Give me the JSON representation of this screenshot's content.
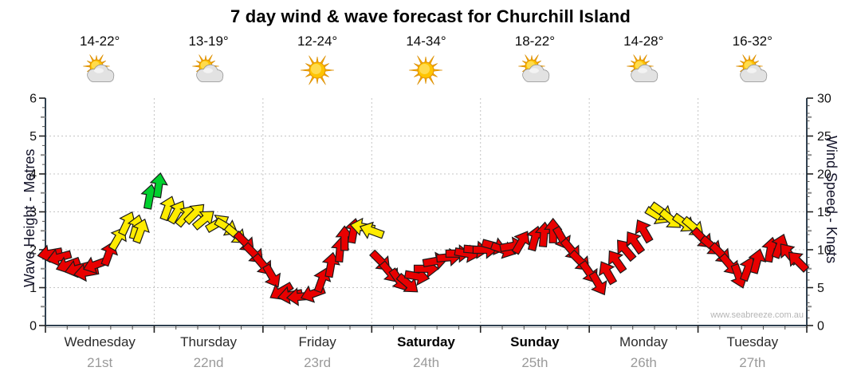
{
  "title": "7 day wind & wave forecast for Churchill Island",
  "watermark": "www.seabreeze.com.au",
  "days": [
    {
      "temp": "14-22°",
      "icon": "partly-cloudy",
      "name": "Wednesday",
      "date": "21st",
      "bold": false
    },
    {
      "temp": "13-19°",
      "icon": "partly-cloudy",
      "name": "Thursday",
      "date": "22nd",
      "bold": false
    },
    {
      "temp": "12-24°",
      "icon": "sunny",
      "name": "Friday",
      "date": "23rd",
      "bold": false
    },
    {
      "temp": "14-34°",
      "icon": "sunny",
      "name": "Saturday",
      "date": "24th",
      "bold": true
    },
    {
      "temp": "18-22°",
      "icon": "partly-cloudy",
      "name": "Sunday",
      "date": "25th",
      "bold": true
    },
    {
      "temp": "14-28°",
      "icon": "partly-cloudy",
      "name": "Monday",
      "date": "26th",
      "bold": false
    },
    {
      "temp": "16-32°",
      "icon": "partly-cloudy",
      "name": "Tuesday",
      "date": "27th",
      "bold": false
    }
  ],
  "chart_data": {
    "type": "wind-arrow-timeseries",
    "title": "7 day wind & wave forecast for Churchill Island",
    "categories": [
      "Wednesday 21st",
      "Thursday 22nd",
      "Friday 23rd",
      "Saturday 24th",
      "Sunday 25th",
      "Monday 26th",
      "Tuesday 27th"
    ],
    "left_axis": {
      "label": "Wave Height - Metres",
      "min": 0,
      "max": 6,
      "major_step": 1
    },
    "right_axis": {
      "label": "Wind Speed - Knots",
      "min": 0,
      "max": 30,
      "major_step": 5
    },
    "grid": true,
    "days_shown": 7,
    "hours_total": 168,
    "series_plotted_against": "right_axis",
    "palette": [
      "#e80000",
      "#ffec00",
      "#00d02e"
    ],
    "palette_names": [
      "red",
      "yellow",
      "green"
    ],
    "arrow_format": [
      "hour_of_week",
      "wind_speed_knots",
      "direction_deg_screen(0=right,90=down,270=up)",
      "color_index"
    ],
    "arrows": [
      [
        1,
        9.5,
        170,
        0
      ],
      [
        3,
        9.0,
        165,
        0
      ],
      [
        5,
        8.0,
        160,
        0
      ],
      [
        7,
        7.5,
        165,
        0
      ],
      [
        9,
        7.0,
        170,
        0
      ],
      [
        11,
        8.0,
        160,
        0
      ],
      [
        14,
        9.5,
        290,
        0
      ],
      [
        16,
        11.5,
        300,
        1
      ],
      [
        18,
        13.5,
        295,
        1
      ],
      [
        20,
        13.0,
        285,
        1
      ],
      [
        21,
        12.5,
        290,
        1
      ],
      [
        23,
        17.0,
        280,
        2
      ],
      [
        25,
        18.5,
        278,
        2
      ],
      [
        27,
        15.5,
        290,
        1
      ],
      [
        29,
        15.0,
        300,
        1
      ],
      [
        31,
        14.5,
        310,
        1
      ],
      [
        33,
        14.8,
        315,
        1
      ],
      [
        35,
        14.0,
        320,
        1
      ],
      [
        38,
        13.5,
        330,
        1
      ],
      [
        40,
        13.0,
        30,
        1
      ],
      [
        42,
        12.0,
        40,
        1
      ],
      [
        44,
        11.0,
        45,
        0
      ],
      [
        46,
        9.5,
        45,
        0
      ],
      [
        48,
        8.0,
        50,
        0
      ],
      [
        50,
        6.5,
        60,
        0
      ],
      [
        52,
        4.5,
        150,
        0
      ],
      [
        54,
        4.0,
        170,
        0
      ],
      [
        56,
        3.8,
        175,
        0
      ],
      [
        59,
        4.2,
        160,
        0
      ],
      [
        61,
        6.0,
        290,
        0
      ],
      [
        63,
        8.0,
        280,
        0
      ],
      [
        65,
        10.0,
        275,
        0
      ],
      [
        66,
        11.5,
        270,
        0
      ],
      [
        68,
        12.5,
        280,
        0
      ],
      [
        70,
        13.0,
        190,
        1
      ],
      [
        72,
        12.5,
        200,
        1
      ],
      [
        74,
        8.5,
        45,
        0
      ],
      [
        76,
        7.0,
        50,
        0
      ],
      [
        78,
        6.0,
        55,
        0
      ],
      [
        80,
        5.5,
        40,
        0
      ],
      [
        82,
        6.5,
        10,
        0
      ],
      [
        84,
        7.5,
        0,
        0
      ],
      [
        86,
        8.5,
        350,
        0
      ],
      [
        89,
        9.0,
        355,
        0
      ],
      [
        91,
        9.5,
        0,
        0
      ],
      [
        93,
        9.5,
        10,
        0
      ],
      [
        95,
        10.0,
        5,
        0
      ],
      [
        97,
        10.0,
        0,
        0
      ],
      [
        99,
        10.5,
        15,
        0
      ],
      [
        101,
        10.0,
        20,
        0
      ],
      [
        103,
        10.5,
        350,
        0
      ],
      [
        105,
        11.0,
        300,
        0
      ],
      [
        108,
        11.5,
        285,
        0
      ],
      [
        110,
        12.0,
        275,
        0
      ],
      [
        112,
        12.5,
        270,
        0
      ],
      [
        114,
        11.5,
        60,
        0
      ],
      [
        116,
        10.0,
        50,
        0
      ],
      [
        118,
        8.5,
        45,
        0
      ],
      [
        120,
        7.0,
        55,
        0
      ],
      [
        122,
        5.5,
        60,
        0
      ],
      [
        124,
        7.0,
        240,
        0
      ],
      [
        126,
        8.5,
        235,
        0
      ],
      [
        128,
        10.0,
        230,
        0
      ],
      [
        130,
        11.0,
        235,
        0
      ],
      [
        132,
        12.5,
        240,
        0
      ],
      [
        135,
        14.5,
        30,
        1
      ],
      [
        136,
        15.0,
        35,
        1
      ],
      [
        138,
        14.0,
        40,
        1
      ],
      [
        141,
        13.5,
        35,
        1
      ],
      [
        143,
        13.0,
        40,
        1
      ],
      [
        145,
        11.5,
        45,
        0
      ],
      [
        147,
        10.5,
        40,
        0
      ],
      [
        149,
        9.5,
        45,
        0
      ],
      [
        151,
        8.0,
        50,
        0
      ],
      [
        153,
        6.5,
        70,
        0
      ],
      [
        155,
        7.5,
        290,
        0
      ],
      [
        157,
        8.5,
        285,
        0
      ],
      [
        160,
        10.0,
        280,
        0
      ],
      [
        162,
        10.5,
        290,
        0
      ],
      [
        164,
        9.5,
        230,
        0
      ],
      [
        166,
        8.5,
        225,
        0
      ]
    ]
  }
}
